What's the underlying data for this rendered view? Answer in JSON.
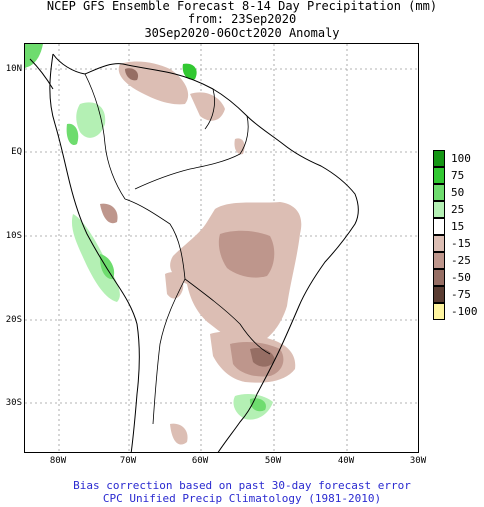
{
  "title": {
    "line1": "NCEP GFS Ensemble Forecast 8-14 Day Precipitation (mm)",
    "line2": "from: 23Sep2020",
    "line3": "30Sep2020-06Oct2020 Anomaly"
  },
  "map": {
    "lat_labels": [
      "10N",
      "EQ",
      "10S",
      "20S",
      "30S"
    ],
    "lon_labels": [
      "80W",
      "70W",
      "60W",
      "50W",
      "40W",
      "30W"
    ]
  },
  "legend": {
    "items": [
      {
        "label": "100",
        "color": "#149614"
      },
      {
        "label": "75",
        "color": "#32c832"
      },
      {
        "label": "50",
        "color": "#6edc6e"
      },
      {
        "label": "25",
        "color": "#b4f0b4"
      },
      {
        "label": "15",
        "color": "#ffffff"
      },
      {
        "label": "-15",
        "color": "#dcbeb4"
      },
      {
        "label": "-25",
        "color": "#be968c"
      },
      {
        "label": "-50",
        "color": "#966e64"
      },
      {
        "label": "-75",
        "color": "#5a3c32"
      },
      {
        "label": "-100",
        "color": "#fff5a0"
      }
    ]
  },
  "footer": {
    "line1": "Bias correction based on past 30-day forecast error",
    "line2": "CPC Unified Precip Climatology (1981-2010)"
  }
}
